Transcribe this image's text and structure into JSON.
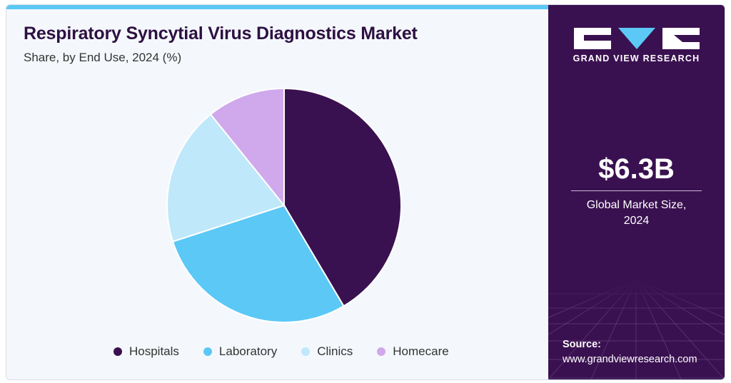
{
  "header": {
    "title": "Respiratory Syncytial Virus Diagnostics Market",
    "subtitle": "Share, by End Use, 2024 (%)"
  },
  "chart_data": {
    "type": "pie",
    "categories": [
      "Hospitals",
      "Laboratory",
      "Clinics",
      "Homecare"
    ],
    "values": [
      41.5,
      28.5,
      19.2,
      10.8
    ],
    "colors": [
      "#3a1150",
      "#5bc8f5",
      "#bfe8fa",
      "#d0a8ec"
    ],
    "legend_position": "bottom"
  },
  "sidebar": {
    "brand": "GRAND VIEW RESEARCH",
    "market_value": "$6.3B",
    "market_label_line1": "Global Market Size,",
    "market_label_line2": "2024",
    "source_label": "Source:",
    "source_url": "www.grandviewresearch.com"
  },
  "colors": {
    "brand_dark": "#3a1150",
    "accent": "#5bc8f5"
  }
}
